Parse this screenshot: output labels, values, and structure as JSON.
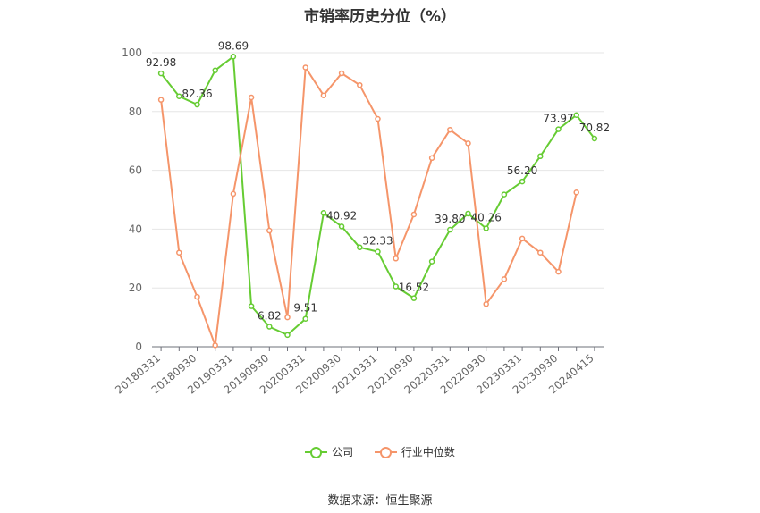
{
  "chart_data": {
    "type": "line",
    "title": "市销率历史分位（%）",
    "ylim": [
      0,
      100
    ],
    "yticks": [
      0,
      20,
      40,
      60,
      80,
      100
    ],
    "x_tick_labels": [
      "20180331",
      "20180930",
      "20190331",
      "20190930",
      "20200331",
      "20200930",
      "20210331",
      "20210930",
      "20220331",
      "20220930",
      "20230331",
      "20230930",
      "20240415"
    ],
    "x": [
      "20180331",
      "20180630",
      "20180930",
      "20181231",
      "20190331",
      "20190630",
      "20190930",
      "20191231",
      "20200331",
      "20200630",
      "20200930",
      "20201231",
      "20210331",
      "20210630",
      "20210930",
      "20211231",
      "20220331",
      "20220630",
      "20220930",
      "20221231",
      "20230331",
      "20230630",
      "20230930",
      "20231231",
      "20240415"
    ],
    "series": [
      {
        "name": "公司",
        "color": "#66cc33",
        "values": [
          92.98,
          85.2,
          82.36,
          94.0,
          98.69,
          13.8,
          6.82,
          4.0,
          9.51,
          45.5,
          40.92,
          33.8,
          32.33,
          20.5,
          16.52,
          29.0,
          39.8,
          45.3,
          40.26,
          51.8,
          56.2,
          64.8,
          73.97,
          78.8,
          70.82
        ],
        "labels": {
          "0": "92.98",
          "2": "82.36",
          "4": "98.69",
          "6": "6.82",
          "8": "9.51",
          "10": "40.92",
          "12": "32.33",
          "14": "16.52",
          "16": "39.80",
          "18": "40.26",
          "20": "56.20",
          "22": "73.97",
          "24": "70.82"
        }
      },
      {
        "name": "行业中位数",
        "color": "#f5956a",
        "values": [
          84.0,
          32.0,
          17.0,
          0.5,
          52.0,
          84.8,
          39.5,
          10.0,
          95.0,
          85.5,
          93.0,
          89.0,
          77.5,
          30.0,
          45.0,
          64.2,
          73.8,
          69.2,
          14.5,
          23.0,
          36.8,
          32.0,
          25.5,
          52.5,
          null
        ]
      }
    ],
    "grid": true,
    "legend_position": "bottom-center"
  },
  "footer": {
    "source": "数据来源：恒生聚源"
  }
}
